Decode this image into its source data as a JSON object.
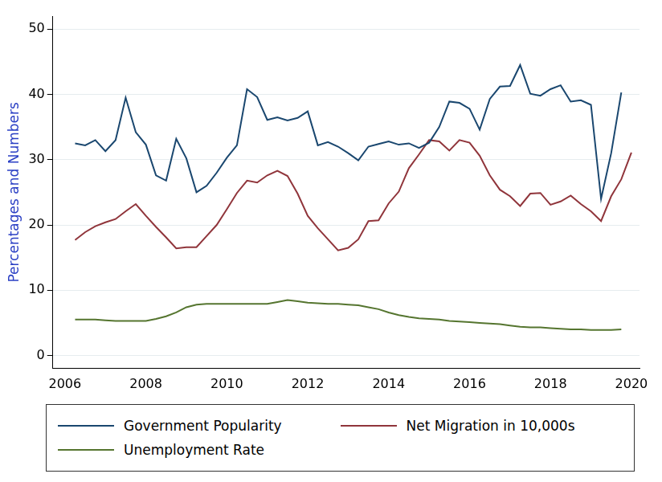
{
  "chart_data": {
    "type": "line",
    "ylabel": "Percentages and Numbers",
    "x": [
      2006.25,
      2006.5,
      2006.75,
      2007.0,
      2007.25,
      2007.5,
      2007.75,
      2008.0,
      2008.25,
      2008.5,
      2008.75,
      2009.0,
      2009.25,
      2009.5,
      2009.75,
      2010.0,
      2010.25,
      2010.5,
      2010.75,
      2011.0,
      2011.25,
      2011.5,
      2011.75,
      2012.0,
      2012.25,
      2012.5,
      2012.75,
      2013.0,
      2013.25,
      2013.5,
      2013.75,
      2014.0,
      2014.25,
      2014.5,
      2014.75,
      2015.0,
      2015.25,
      2015.5,
      2015.75,
      2016.0,
      2016.25,
      2016.5,
      2016.75,
      2017.0,
      2017.25,
      2017.5,
      2017.75,
      2018.0,
      2018.25,
      2018.5,
      2018.75,
      2019.0,
      2019.25,
      2019.5,
      2019.75,
      2020.0
    ],
    "series": [
      {
        "name": "Government Popularity",
        "color": "#1a476f",
        "values": [
          32.5,
          32.2,
          33.0,
          31.3,
          33.0,
          39.5,
          34.2,
          32.3,
          27.6,
          26.8,
          33.2,
          30.2,
          25.0,
          26.0,
          28.0,
          30.3,
          32.2,
          40.8,
          39.6,
          36.1,
          36.5,
          36.0,
          36.4,
          37.4,
          32.2,
          32.7,
          32.0,
          31.0,
          29.9,
          32.0,
          32.4,
          32.8,
          32.3,
          32.5,
          31.8,
          32.6,
          35.0,
          38.9,
          38.7,
          37.8,
          34.6,
          39.3,
          41.2,
          41.3,
          44.5,
          40.1,
          39.8,
          40.8,
          41.4,
          38.9,
          39.1,
          38.4,
          24.0,
          31.0,
          40.3,
          null
        ]
      },
      {
        "name": "Net Migration in 10,000s",
        "color": "#90353b",
        "values": [
          17.7,
          18.9,
          19.8,
          20.4,
          20.9,
          22.1,
          23.2,
          21.4,
          19.7,
          18.1,
          16.4,
          16.6,
          16.6,
          18.3,
          20.0,
          22.4,
          24.9,
          26.8,
          26.5,
          27.6,
          28.3,
          27.5,
          24.8,
          21.4,
          19.5,
          17.8,
          16.1,
          16.5,
          17.8,
          20.6,
          20.7,
          23.3,
          25.1,
          28.7,
          30.8,
          33.0,
          32.8,
          31.4,
          33.0,
          32.6,
          30.6,
          27.6,
          25.4,
          24.4,
          22.9,
          24.8,
          24.9,
          23.1,
          23.6,
          24.5,
          23.2,
          22.1,
          20.6,
          24.4,
          27.0,
          31.1
        ]
      },
      {
        "name": "Unemployment Rate",
        "color": "#55752f",
        "values": [
          5.5,
          5.5,
          5.5,
          5.4,
          5.3,
          5.3,
          5.3,
          5.3,
          5.6,
          6.0,
          6.6,
          7.4,
          7.8,
          7.9,
          7.9,
          7.9,
          7.9,
          7.9,
          7.9,
          7.9,
          8.2,
          8.5,
          8.3,
          8.1,
          8.0,
          7.9,
          7.9,
          7.8,
          7.7,
          7.4,
          7.1,
          6.6,
          6.2,
          5.9,
          5.7,
          5.6,
          5.5,
          5.3,
          5.2,
          5.1,
          5.0,
          4.9,
          4.8,
          4.6,
          4.4,
          4.3,
          4.3,
          4.2,
          4.1,
          4.0,
          4.0,
          3.9,
          3.9,
          3.9,
          4.0,
          null
        ]
      }
    ],
    "xlim": [
      2005.7,
      2020.2
    ],
    "xticks": [
      2006,
      2008,
      2010,
      2012,
      2014,
      2016,
      2018,
      2020
    ],
    "ylim": [
      -2,
      52
    ],
    "yticks": [
      0,
      10,
      20,
      30,
      40,
      50
    ],
    "grid": "y",
    "legend": "bottom",
    "marker": "none"
  }
}
